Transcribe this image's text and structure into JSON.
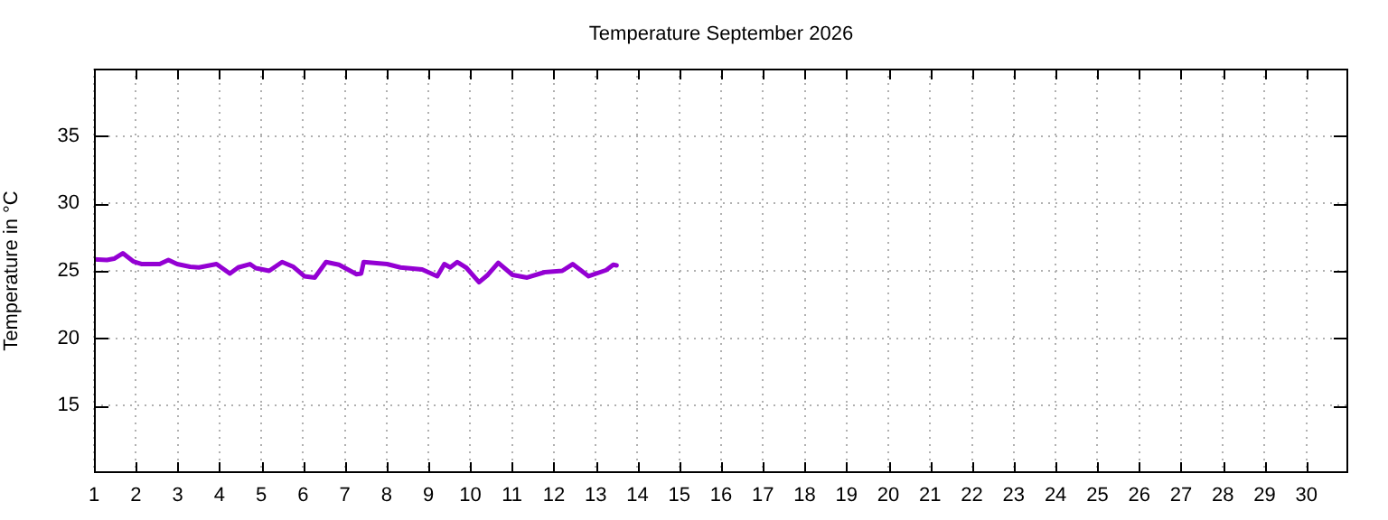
{
  "chart_data": {
    "type": "line",
    "title": "Temperature September 2026",
    "ylabel": "Temperature in °C",
    "x": [
      1.0,
      1.31,
      1.48,
      1.69,
      1.94,
      2.15,
      2.57,
      2.78,
      2.99,
      3.3,
      3.51,
      3.93,
      4.25,
      4.45,
      4.73,
      4.87,
      5.19,
      5.5,
      5.77,
      6.03,
      6.28,
      6.55,
      6.86,
      7.28,
      7.39,
      7.45,
      8.01,
      8.33,
      8.85,
      9.21,
      9.38,
      9.52,
      9.69,
      9.9,
      10.21,
      10.42,
      10.67,
      11.01,
      11.36,
      11.78,
      12.2,
      12.45,
      12.83,
      13.25,
      13.42,
      13.5
    ],
    "series": [
      {
        "color": "#9400d3",
        "values": [
          25.85,
          25.8,
          25.9,
          26.3,
          25.7,
          25.5,
          25.5,
          25.8,
          25.5,
          25.3,
          25.25,
          25.5,
          24.8,
          25.25,
          25.5,
          25.2,
          25.0,
          25.65,
          25.3,
          24.6,
          24.5,
          25.65,
          25.45,
          24.75,
          24.8,
          25.65,
          25.5,
          25.25,
          25.1,
          24.6,
          25.5,
          25.25,
          25.65,
          25.25,
          24.15,
          24.7,
          25.6,
          24.7,
          24.5,
          24.9,
          25.0,
          25.5,
          24.6,
          25.05,
          25.45,
          25.4
        ]
      }
    ],
    "xlim": [
      1,
      31
    ],
    "xticks": [
      1,
      2,
      3,
      4,
      5,
      6,
      7,
      8,
      9,
      10,
      11,
      12,
      13,
      14,
      15,
      16,
      17,
      18,
      19,
      20,
      21,
      22,
      23,
      24,
      25,
      26,
      27,
      28,
      29,
      30
    ],
    "ylim": [
      10,
      40
    ],
    "yticks": [
      15,
      20,
      25,
      30,
      35
    ],
    "grid": true,
    "legend": false,
    "marker": "none",
    "line_style": "solid"
  }
}
